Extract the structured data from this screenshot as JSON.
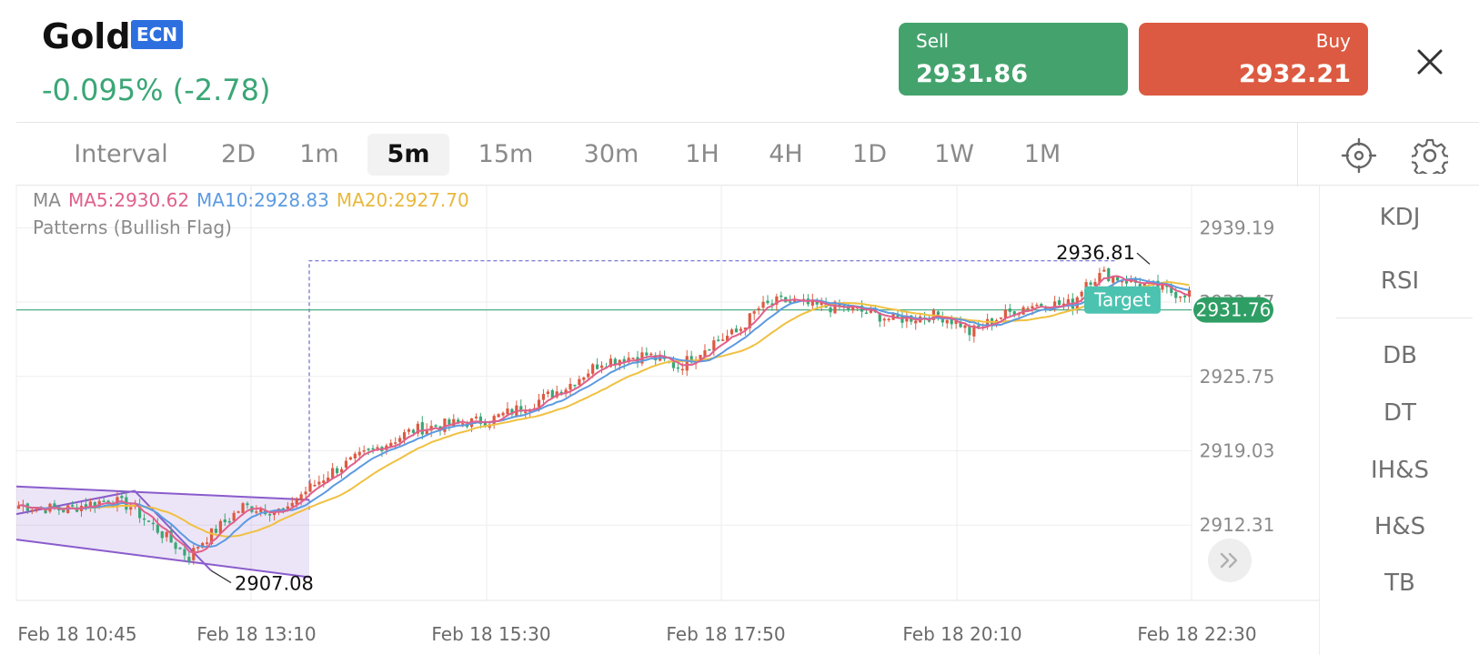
{
  "header": {
    "title": "Gold",
    "badge": "ECN",
    "change": "-0.095% (-2.78)",
    "sell": {
      "label": "Sell",
      "value": "2931.86"
    },
    "buy": {
      "label": "Buy",
      "value": "2932.21"
    }
  },
  "intervals": [
    "Interval",
    "2D",
    "1m",
    "5m",
    "15m",
    "30m",
    "1H",
    "4H",
    "1D",
    "1W",
    "1M"
  ],
  "active_interval": "5m",
  "legend": {
    "ma": "MA",
    "ma5": "MA5:2930.62",
    "ma10": "MA10:2928.83",
    "ma20": "MA20:2927.70",
    "pattern": "Patterns (Bullish Flag)"
  },
  "colors": {
    "up": "#dc5a41",
    "down": "#3aa676",
    "ma5": "#e0608c",
    "ma10": "#5c9ae0",
    "ma20": "#f0c040",
    "flag": "#8a5ccc"
  },
  "indicators": [
    "KDJ",
    "RSI",
    "DB",
    "DT",
    "IH&S",
    "H&S",
    "TB"
  ],
  "chart_data": {
    "type": "candlestick",
    "y_ticks": [
      "2939.19",
      "2932.47",
      "2925.75",
      "2919.03",
      "2912.31"
    ],
    "x_ticks": [
      "Feb 18 10:45",
      "Feb 18 13:10",
      "Feb 18 15:30",
      "Feb 18 17:50",
      "Feb 18 20:10",
      "Feb 18 22:30"
    ],
    "current_price": "2931.76",
    "high_label": "2936.81",
    "low_label": "2907.08",
    "target_label": "Target",
    "ylim": [
      2905.5,
      2943
    ],
    "trend": [
      [
        0,
        2914.1
      ],
      [
        10,
        2913.7
      ],
      [
        20,
        2914.6
      ],
      [
        25,
        2914.0
      ],
      [
        32,
        2911.5
      ],
      [
        38,
        2909.4
      ],
      [
        40,
        2910.5
      ],
      [
        50,
        2914.0
      ],
      [
        60,
        2913.5
      ],
      [
        61,
        2914.5
      ],
      [
        70,
        2917.2
      ],
      [
        80,
        2919.3
      ],
      [
        88,
        2920.9
      ],
      [
        95,
        2921.4
      ],
      [
        105,
        2921.8
      ],
      [
        115,
        2923.4
      ],
      [
        122,
        2924.8
      ],
      [
        130,
        2927.1
      ],
      [
        140,
        2927.7
      ],
      [
        147,
        2926.6
      ],
      [
        155,
        2928.9
      ],
      [
        160,
        2929.7
      ],
      [
        165,
        2931.9
      ],
      [
        170,
        2932.6
      ],
      [
        178,
        2932.1
      ],
      [
        185,
        2931.9
      ],
      [
        195,
        2930.9
      ],
      [
        205,
        2931.3
      ],
      [
        210,
        2930.5
      ],
      [
        212,
        2929.7
      ],
      [
        218,
        2931.0
      ],
      [
        225,
        2932.2
      ],
      [
        235,
        2932.3
      ],
      [
        238,
        2934.4
      ],
      [
        242,
        2935.0
      ],
      [
        250,
        2934.1
      ],
      [
        258,
        2933.3
      ]
    ]
  }
}
